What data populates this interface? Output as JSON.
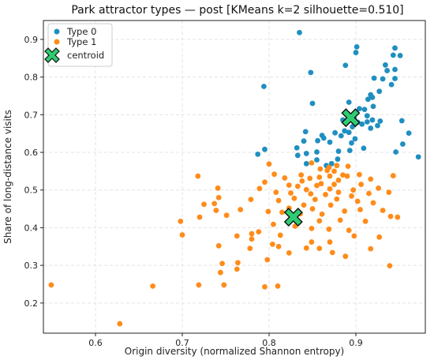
{
  "chart_data": {
    "type": "scatter",
    "title": "Park attractor types — post [KMeans k=2 silhouette=0.510]",
    "xlabel": "Origin diversity (normalized Shannon entropy)",
    "ylabel": "Share of long-distance visits",
    "xlim": [
      0.54,
      0.98
    ],
    "ylim": [
      0.12,
      0.95
    ],
    "xticks": [
      "0.6",
      "0.7",
      "0.8",
      "0.9"
    ],
    "yticks": [
      "0.2",
      "0.3",
      "0.4",
      "0.5",
      "0.6",
      "0.7",
      "0.8",
      "0.9"
    ],
    "grid": true,
    "legend_position": "top-left",
    "colors": {
      "type0": "#1f8fc0",
      "type1": "#ff8c1a",
      "centroid": "#2ecc71"
    },
    "series": [
      {
        "name": "Type 0",
        "points": [
          [
            0.835,
            0.918
          ],
          [
            0.901,
            0.88
          ],
          [
            0.9,
            0.865
          ],
          [
            0.945,
            0.877
          ],
          [
            0.943,
            0.858
          ],
          [
            0.951,
            0.857
          ],
          [
            0.934,
            0.832
          ],
          [
            0.888,
            0.831
          ],
          [
            0.936,
            0.817
          ],
          [
            0.945,
            0.82
          ],
          [
            0.848,
            0.812
          ],
          [
            0.931,
            0.795
          ],
          [
            0.921,
            0.797
          ],
          [
            0.945,
            0.796
          ],
          [
            0.794,
            0.775
          ],
          [
            0.941,
            0.78
          ],
          [
            0.917,
            0.753
          ],
          [
            0.927,
            0.762
          ],
          [
            0.919,
            0.746
          ],
          [
            0.914,
            0.741
          ],
          [
            0.85,
            0.73
          ],
          [
            0.892,
            0.733
          ],
          [
            0.904,
            0.716
          ],
          [
            0.91,
            0.714
          ],
          [
            0.92,
            0.722
          ],
          [
            0.913,
            0.697
          ],
          [
            0.885,
            0.686
          ],
          [
            0.898,
            0.69
          ],
          [
            0.919,
            0.686
          ],
          [
            0.902,
            0.68
          ],
          [
            0.913,
            0.681
          ],
          [
            0.928,
            0.683
          ],
          [
            0.907,
            0.675
          ],
          [
            0.925,
            0.671
          ],
          [
            0.953,
            0.684
          ],
          [
            0.896,
            0.668
          ],
          [
            0.917,
            0.664
          ],
          [
            0.887,
            0.657
          ],
          [
            0.842,
            0.655
          ],
          [
            0.892,
            0.653
          ],
          [
            0.876,
            0.652
          ],
          [
            0.861,
            0.645
          ],
          [
            0.883,
            0.644
          ],
          [
            0.863,
            0.638
          ],
          [
            0.899,
            0.636
          ],
          [
            0.84,
            0.63
          ],
          [
            0.856,
            0.631
          ],
          [
            0.87,
            0.627
          ],
          [
            0.895,
            0.625
          ],
          [
            0.832,
            0.612
          ],
          [
            0.909,
            0.611
          ],
          [
            0.893,
            0.605
          ],
          [
            0.855,
            0.601
          ],
          [
            0.88,
            0.603
          ],
          [
            0.795,
            0.608
          ],
          [
            0.843,
            0.597
          ],
          [
            0.833,
            0.592
          ],
          [
            0.787,
            0.595
          ],
          [
            0.855,
            0.58
          ],
          [
            0.879,
            0.582
          ],
          [
            0.872,
            0.57
          ],
          [
            0.843,
            0.57
          ],
          [
            0.866,
            0.565
          ],
          [
            0.961,
            0.651
          ],
          [
            0.954,
            0.622
          ],
          [
            0.946,
            0.601
          ],
          [
            0.972,
            0.588
          ]
        ]
      },
      {
        "name": "Type 1",
        "points": [
          [
            0.849,
            0.572
          ],
          [
            0.8,
            0.569
          ],
          [
            0.878,
            0.565
          ],
          [
            0.869,
            0.56
          ],
          [
            0.891,
            0.563
          ],
          [
            0.859,
            0.556
          ],
          [
            0.867,
            0.552
          ],
          [
            0.875,
            0.55
          ],
          [
            0.806,
            0.542
          ],
          [
            0.837,
            0.54
          ],
          [
            0.885,
            0.54
          ],
          [
            0.87,
            0.537
          ],
          [
            0.858,
            0.534
          ],
          [
            0.818,
            0.532
          ],
          [
            0.847,
            0.531
          ],
          [
            0.718,
            0.537
          ],
          [
            0.89,
            0.537
          ],
          [
            0.904,
            0.541
          ],
          [
            0.943,
            0.538
          ],
          [
            0.795,
            0.521
          ],
          [
            0.838,
            0.524
          ],
          [
            0.88,
            0.526
          ],
          [
            0.917,
            0.529
          ],
          [
            0.86,
            0.517
          ],
          [
            0.823,
            0.513
          ],
          [
            0.833,
            0.51
          ],
          [
            0.855,
            0.512
          ],
          [
            0.875,
            0.515
          ],
          [
            0.906,
            0.515
          ],
          [
            0.741,
            0.505
          ],
          [
            0.789,
            0.504
          ],
          [
            0.843,
            0.501
          ],
          [
            0.87,
            0.503
          ],
          [
            0.897,
            0.5
          ],
          [
            0.926,
            0.505
          ],
          [
            0.808,
            0.494
          ],
          [
            0.825,
            0.492
          ],
          [
            0.848,
            0.49
          ],
          [
            0.88,
            0.494
          ],
          [
            0.915,
            0.491
          ],
          [
            0.938,
            0.494
          ],
          [
            0.865,
            0.488
          ],
          [
            0.895,
            0.484
          ],
          [
            0.742,
            0.48
          ],
          [
            0.829,
            0.478
          ],
          [
            0.853,
            0.475
          ],
          [
            0.878,
            0.476
          ],
          [
            0.811,
            0.472
          ],
          [
            0.779,
            0.475
          ],
          [
            0.902,
            0.47
          ],
          [
            0.92,
            0.466
          ],
          [
            0.737,
            0.464
          ],
          [
            0.725,
            0.462
          ],
          [
            0.84,
            0.46
          ],
          [
            0.871,
            0.46
          ],
          [
            0.823,
            0.452
          ],
          [
            0.85,
            0.45
          ],
          [
            0.767,
            0.448
          ],
          [
            0.739,
            0.446
          ],
          [
            0.799,
            0.443
          ],
          [
            0.887,
            0.444
          ],
          [
            0.931,
            0.446
          ],
          [
            0.905,
            0.448
          ],
          [
            0.815,
            0.441
          ],
          [
            0.836,
            0.437
          ],
          [
            0.861,
            0.436
          ],
          [
            0.751,
            0.433
          ],
          [
            0.94,
            0.43
          ],
          [
            0.948,
            0.428
          ],
          [
            0.72,
            0.428
          ],
          [
            0.698,
            0.417
          ],
          [
            0.858,
            0.418
          ],
          [
            0.882,
            0.42
          ],
          [
            0.911,
            0.417
          ],
          [
            0.805,
            0.409
          ],
          [
            0.83,
            0.404
          ],
          [
            0.849,
            0.398
          ],
          [
            0.869,
            0.396
          ],
          [
            0.892,
            0.393
          ],
          [
            0.788,
            0.389
          ],
          [
            0.78,
            0.384
          ],
          [
            0.763,
            0.378
          ],
          [
            0.7,
            0.381
          ],
          [
            0.813,
            0.38
          ],
          [
            0.898,
            0.378
          ],
          [
            0.927,
            0.375
          ],
          [
            0.78,
            0.37
          ],
          [
            0.849,
            0.362
          ],
          [
            0.87,
            0.362
          ],
          [
            0.804,
            0.356
          ],
          [
            0.811,
            0.35
          ],
          [
            0.742,
            0.352
          ],
          [
            0.843,
            0.346
          ],
          [
            0.858,
            0.345
          ],
          [
            0.778,
            0.345
          ],
          [
            0.917,
            0.344
          ],
          [
            0.823,
            0.333
          ],
          [
            0.873,
            0.334
          ],
          [
            0.888,
            0.324
          ],
          [
            0.798,
            0.315
          ],
          [
            0.764,
            0.307
          ],
          [
            0.746,
            0.305
          ],
          [
            0.939,
            0.299
          ],
          [
            0.763,
            0.29
          ],
          [
            0.744,
            0.281
          ],
          [
            0.719,
            0.248
          ],
          [
            0.795,
            0.243
          ],
          [
            0.81,
            0.245
          ],
          [
            0.748,
            0.248
          ],
          [
            0.666,
            0.245
          ],
          [
            0.549,
            0.248
          ],
          [
            0.628,
            0.145
          ]
        ]
      }
    ],
    "centroids": {
      "name": "centroid",
      "points": [
        [
          0.894,
          0.692
        ],
        [
          0.828,
          0.428
        ]
      ]
    }
  }
}
